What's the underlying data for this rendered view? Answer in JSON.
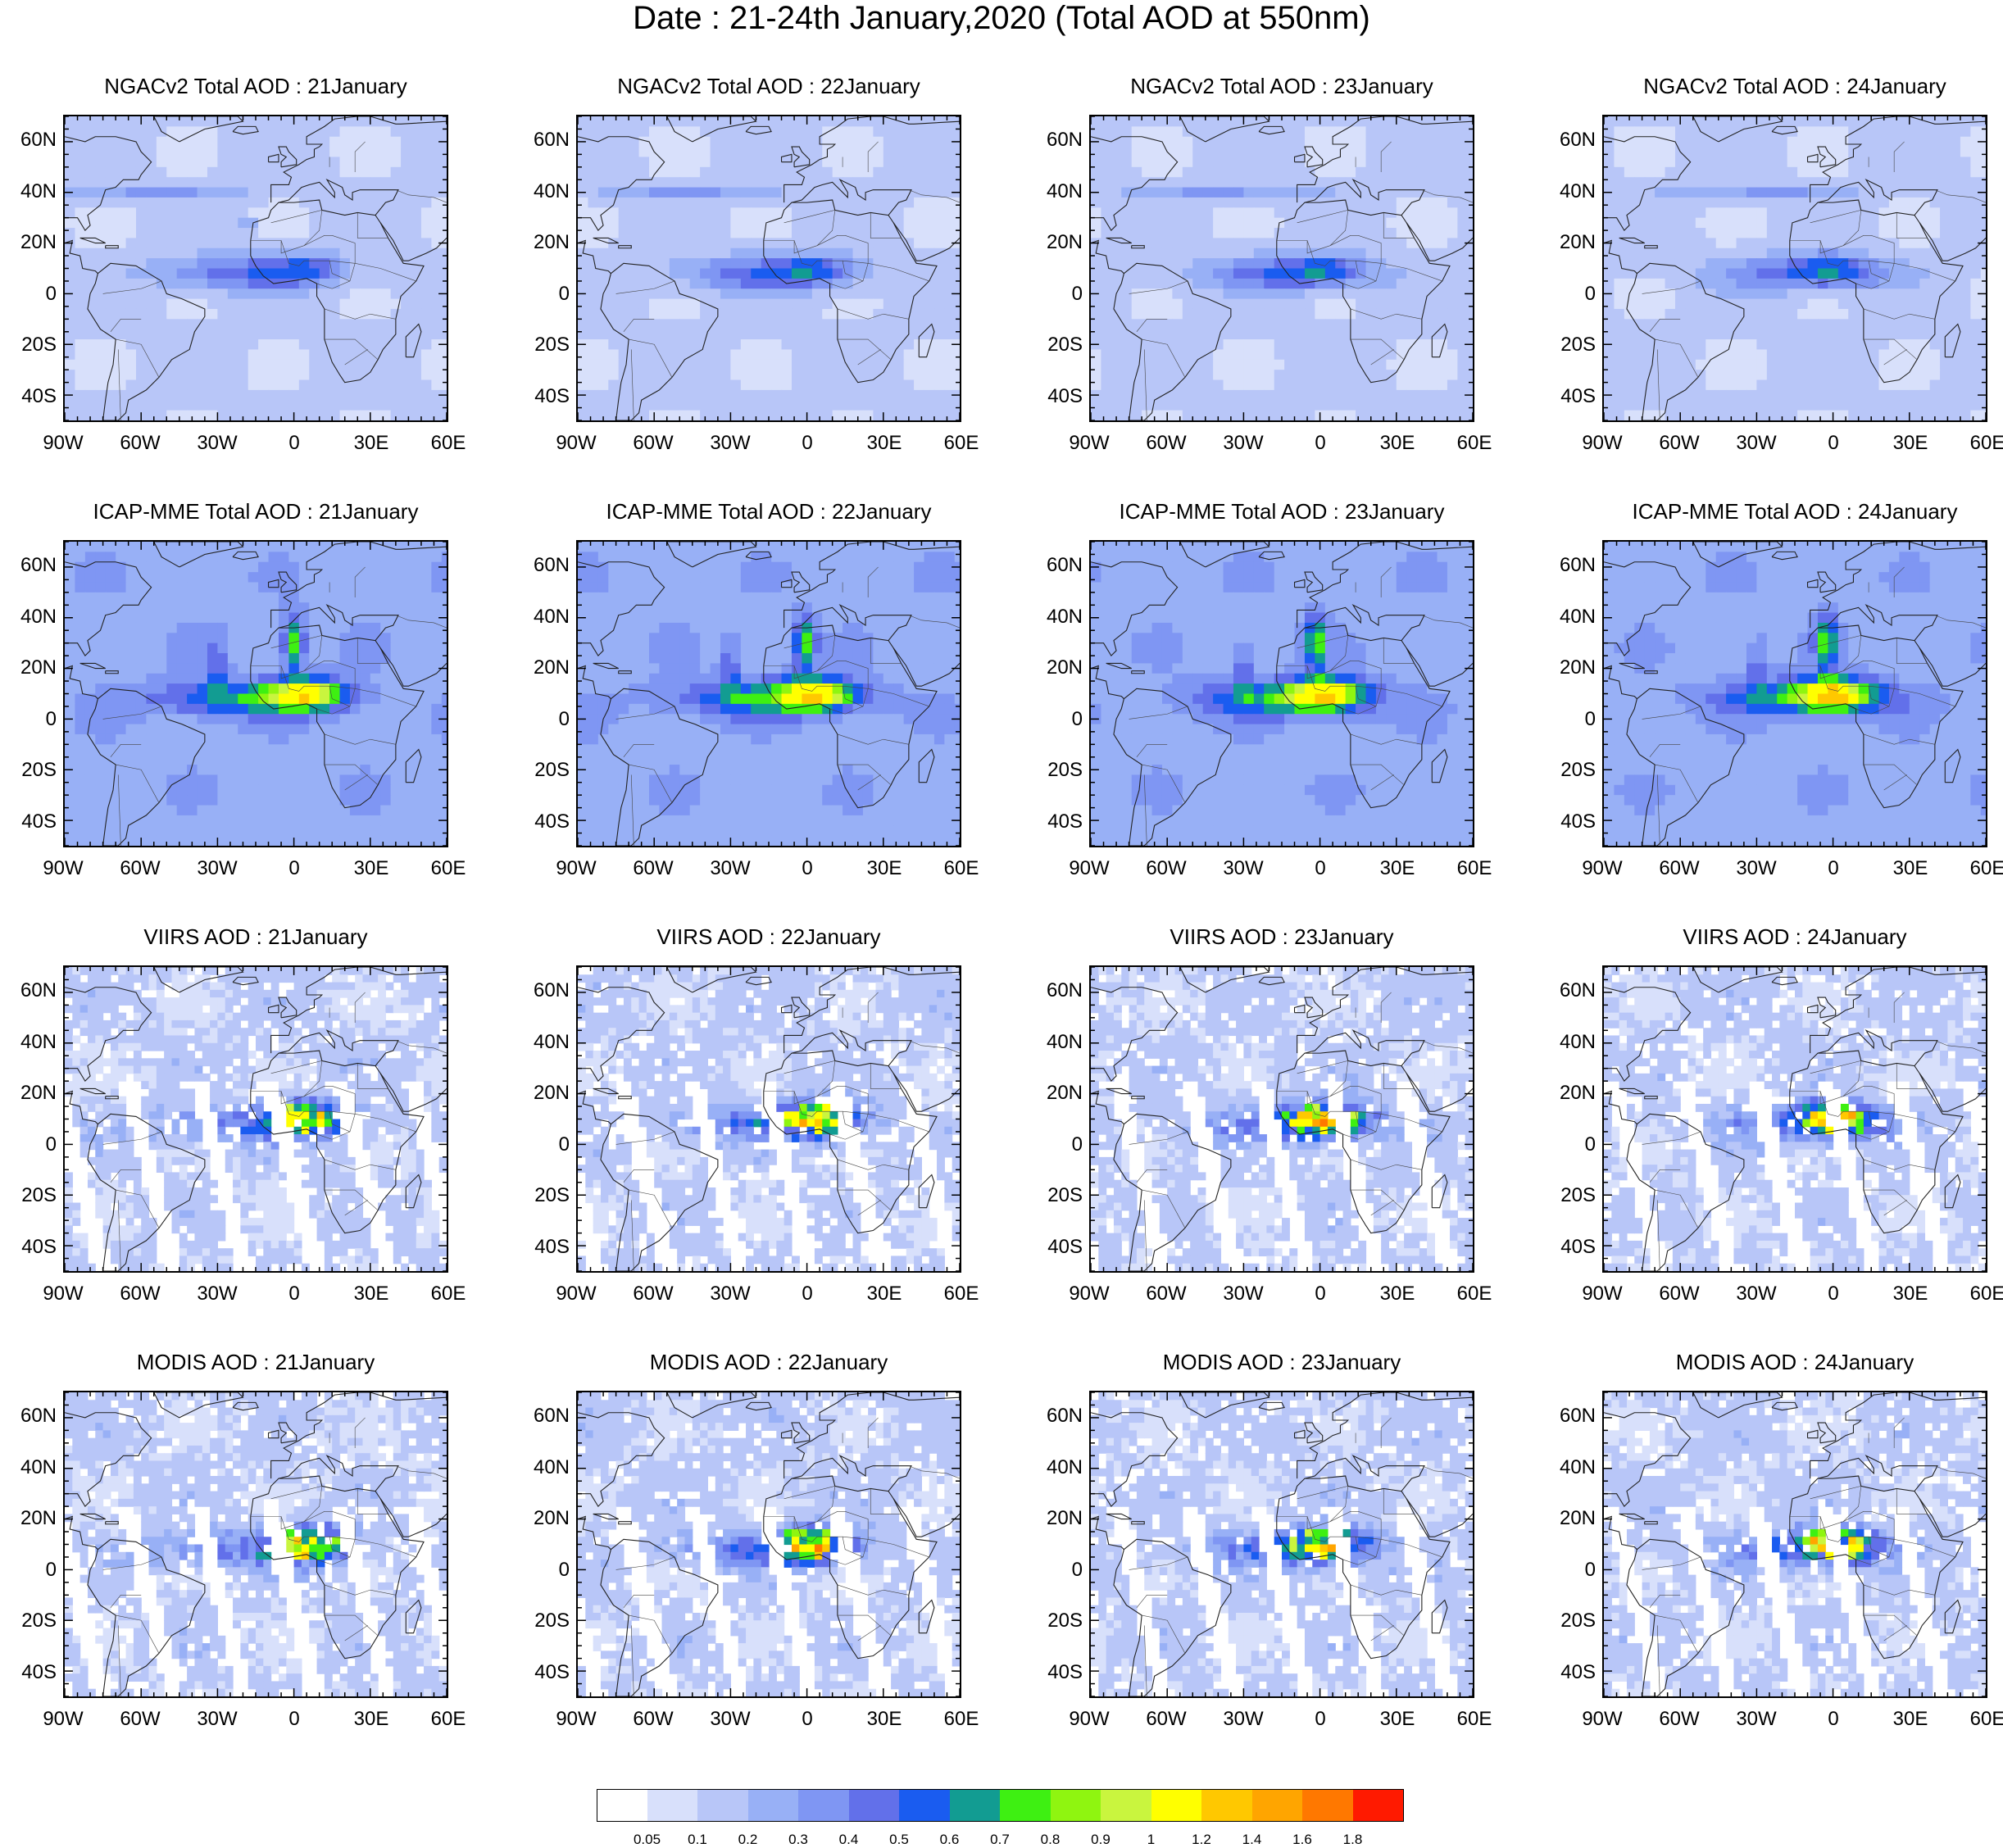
{
  "title": "Date : 21-24th January,2020 (Total AOD at 550nm)",
  "panels": [
    {
      "row": 0,
      "col": 0,
      "title": "NGACv2 Total AOD : 21January",
      "product": "NGACv2",
      "day": 21
    },
    {
      "row": 0,
      "col": 1,
      "title": "NGACv2 Total AOD : 22January",
      "product": "NGACv2",
      "day": 22
    },
    {
      "row": 0,
      "col": 2,
      "title": "NGACv2 Total AOD : 23January",
      "product": "NGACv2",
      "day": 23
    },
    {
      "row": 0,
      "col": 3,
      "title": "NGACv2 Total AOD : 24January",
      "product": "NGACv2",
      "day": 24
    },
    {
      "row": 1,
      "col": 0,
      "title": "ICAP-MME Total AOD : 21January",
      "product": "ICAP-MME",
      "day": 21
    },
    {
      "row": 1,
      "col": 1,
      "title": "ICAP-MME Total AOD : 22January",
      "product": "ICAP-MME",
      "day": 22
    },
    {
      "row": 1,
      "col": 2,
      "title": "ICAP-MME Total AOD : 23January",
      "product": "ICAP-MME",
      "day": 23
    },
    {
      "row": 1,
      "col": 3,
      "title": "ICAP-MME Total AOD : 24January",
      "product": "ICAP-MME",
      "day": 24
    },
    {
      "row": 2,
      "col": 0,
      "title": "VIIRS AOD : 21January",
      "product": "VIIRS",
      "day": 21
    },
    {
      "row": 2,
      "col": 1,
      "title": "VIIRS AOD : 22January",
      "product": "VIIRS",
      "day": 22
    },
    {
      "row": 2,
      "col": 2,
      "title": "VIIRS AOD : 23January",
      "product": "VIIRS",
      "day": 23
    },
    {
      "row": 2,
      "col": 3,
      "title": "VIIRS AOD : 24January",
      "product": "VIIRS",
      "day": 24
    },
    {
      "row": 3,
      "col": 0,
      "title": "MODIS AOD : 21January",
      "product": "MODIS",
      "day": 21
    },
    {
      "row": 3,
      "col": 1,
      "title": "MODIS AOD : 22January",
      "product": "MODIS",
      "day": 22
    },
    {
      "row": 3,
      "col": 2,
      "title": "MODIS AOD : 23January",
      "product": "MODIS",
      "day": 23
    },
    {
      "row": 3,
      "col": 3,
      "title": "MODIS AOD : 24January",
      "product": "MODIS",
      "day": 24
    }
  ],
  "map_extent": {
    "lon_min": -90,
    "lon_max": 60,
    "lat_min": -50,
    "lat_max": 70
  },
  "lat_ticks": [
    {
      "value": 60,
      "label": "60N"
    },
    {
      "value": 40,
      "label": "40N"
    },
    {
      "value": 20,
      "label": "20N"
    },
    {
      "value": 0,
      "label": "0"
    },
    {
      "value": -20,
      "label": "20S"
    },
    {
      "value": -40,
      "label": "40S"
    }
  ],
  "lon_ticks": [
    {
      "value": -90,
      "label": "90W"
    },
    {
      "value": -60,
      "label": "60W"
    },
    {
      "value": -30,
      "label": "30W"
    },
    {
      "value": 0,
      "label": "0"
    },
    {
      "value": 30,
      "label": "30E"
    },
    {
      "value": 60,
      "label": "60E"
    }
  ],
  "colorbar": {
    "colors": [
      "#ffffff",
      "#d8e0fb",
      "#b8c6f8",
      "#98b0f6",
      "#7f96f3",
      "#6270ea",
      "#1a5cf0",
      "#129c92",
      "#3ef012",
      "#8ff510",
      "#c9f53e",
      "#ffff00",
      "#ffc800",
      "#ffa500",
      "#ff7800",
      "#ff1a00"
    ],
    "labels": [
      "0.05",
      "0.1",
      "0.2",
      "0.3",
      "0.4",
      "0.5",
      "0.6",
      "0.7",
      "0.8",
      "0.9",
      "1",
      "1.2",
      "1.4",
      "1.6",
      "1.8"
    ]
  }
}
